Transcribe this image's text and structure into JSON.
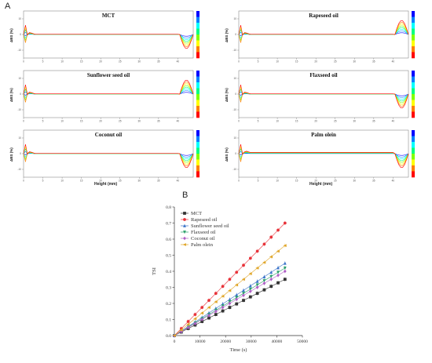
{
  "panel_labels": {
    "a": "A",
    "b": "B"
  },
  "panel_a": {
    "x_axis_label": "Height (mm)",
    "y_axis_label": "ΔBS (%)",
    "x_ticks": [
      0,
      5,
      10,
      15,
      20,
      25,
      30,
      35,
      40
    ],
    "y_ticks": [
      -10,
      0,
      10
    ],
    "subplots": [
      {
        "title": "MCT",
        "end": "down"
      },
      {
        "title": "Rapeseed oil",
        "end": "up"
      },
      {
        "title": "Sunflower seed oil",
        "end": "up"
      },
      {
        "title": "Flaxseed oil",
        "end": "down"
      },
      {
        "title": "Coconut oil",
        "end": "down"
      },
      {
        "title": "Palm olein",
        "end": "down"
      }
    ],
    "colorbar_colors": [
      "#0000ff",
      "#0080ff",
      "#00ffff",
      "#00ff80",
      "#80ff00",
      "#ffff00",
      "#ff8000",
      "#ff0000"
    ]
  },
  "chart_data": {
    "type": "line",
    "xlabel": "Time (s)",
    "ylabel": "TSI",
    "xlim": [
      0,
      50000
    ],
    "ylim": [
      0,
      0.8
    ],
    "x_ticks": [
      0,
      10000,
      20000,
      30000,
      40000,
      50000
    ],
    "y_ticks": [
      0.0,
      0.1,
      0.2,
      0.3,
      0.4,
      0.5,
      0.6,
      0.7,
      0.8
    ],
    "y_tick_labels": [
      "0.0",
      "0.1",
      "0.2",
      "0.3",
      "0.4",
      "0.5",
      "0.6",
      "0.7",
      "0.8"
    ],
    "x": [
      0,
      2700,
      5400,
      8100,
      10800,
      13500,
      16200,
      18900,
      21600,
      24300,
      27000,
      29700,
      32400,
      35100,
      37800,
      40500,
      43200
    ],
    "series": [
      {
        "name": "MCT",
        "color": "#333333",
        "marker": "square",
        "final": 0.35
      },
      {
        "name": "Rapeseed oil",
        "color": "#e8333a",
        "marker": "circle",
        "final": 0.7
      },
      {
        "name": "Sunflower seed oil",
        "color": "#3b74c9",
        "marker": "triangle-up",
        "final": 0.45
      },
      {
        "name": "Flaxseed oil",
        "color": "#2aa06a",
        "marker": "triangle-down",
        "final": 0.42
      },
      {
        "name": "Coconut oil",
        "color": "#b05fc6",
        "marker": "diamond",
        "final": 0.4
      },
      {
        "name": "Palm olein",
        "color": "#e0a526",
        "marker": "triangle-left",
        "final": 0.56
      }
    ]
  }
}
